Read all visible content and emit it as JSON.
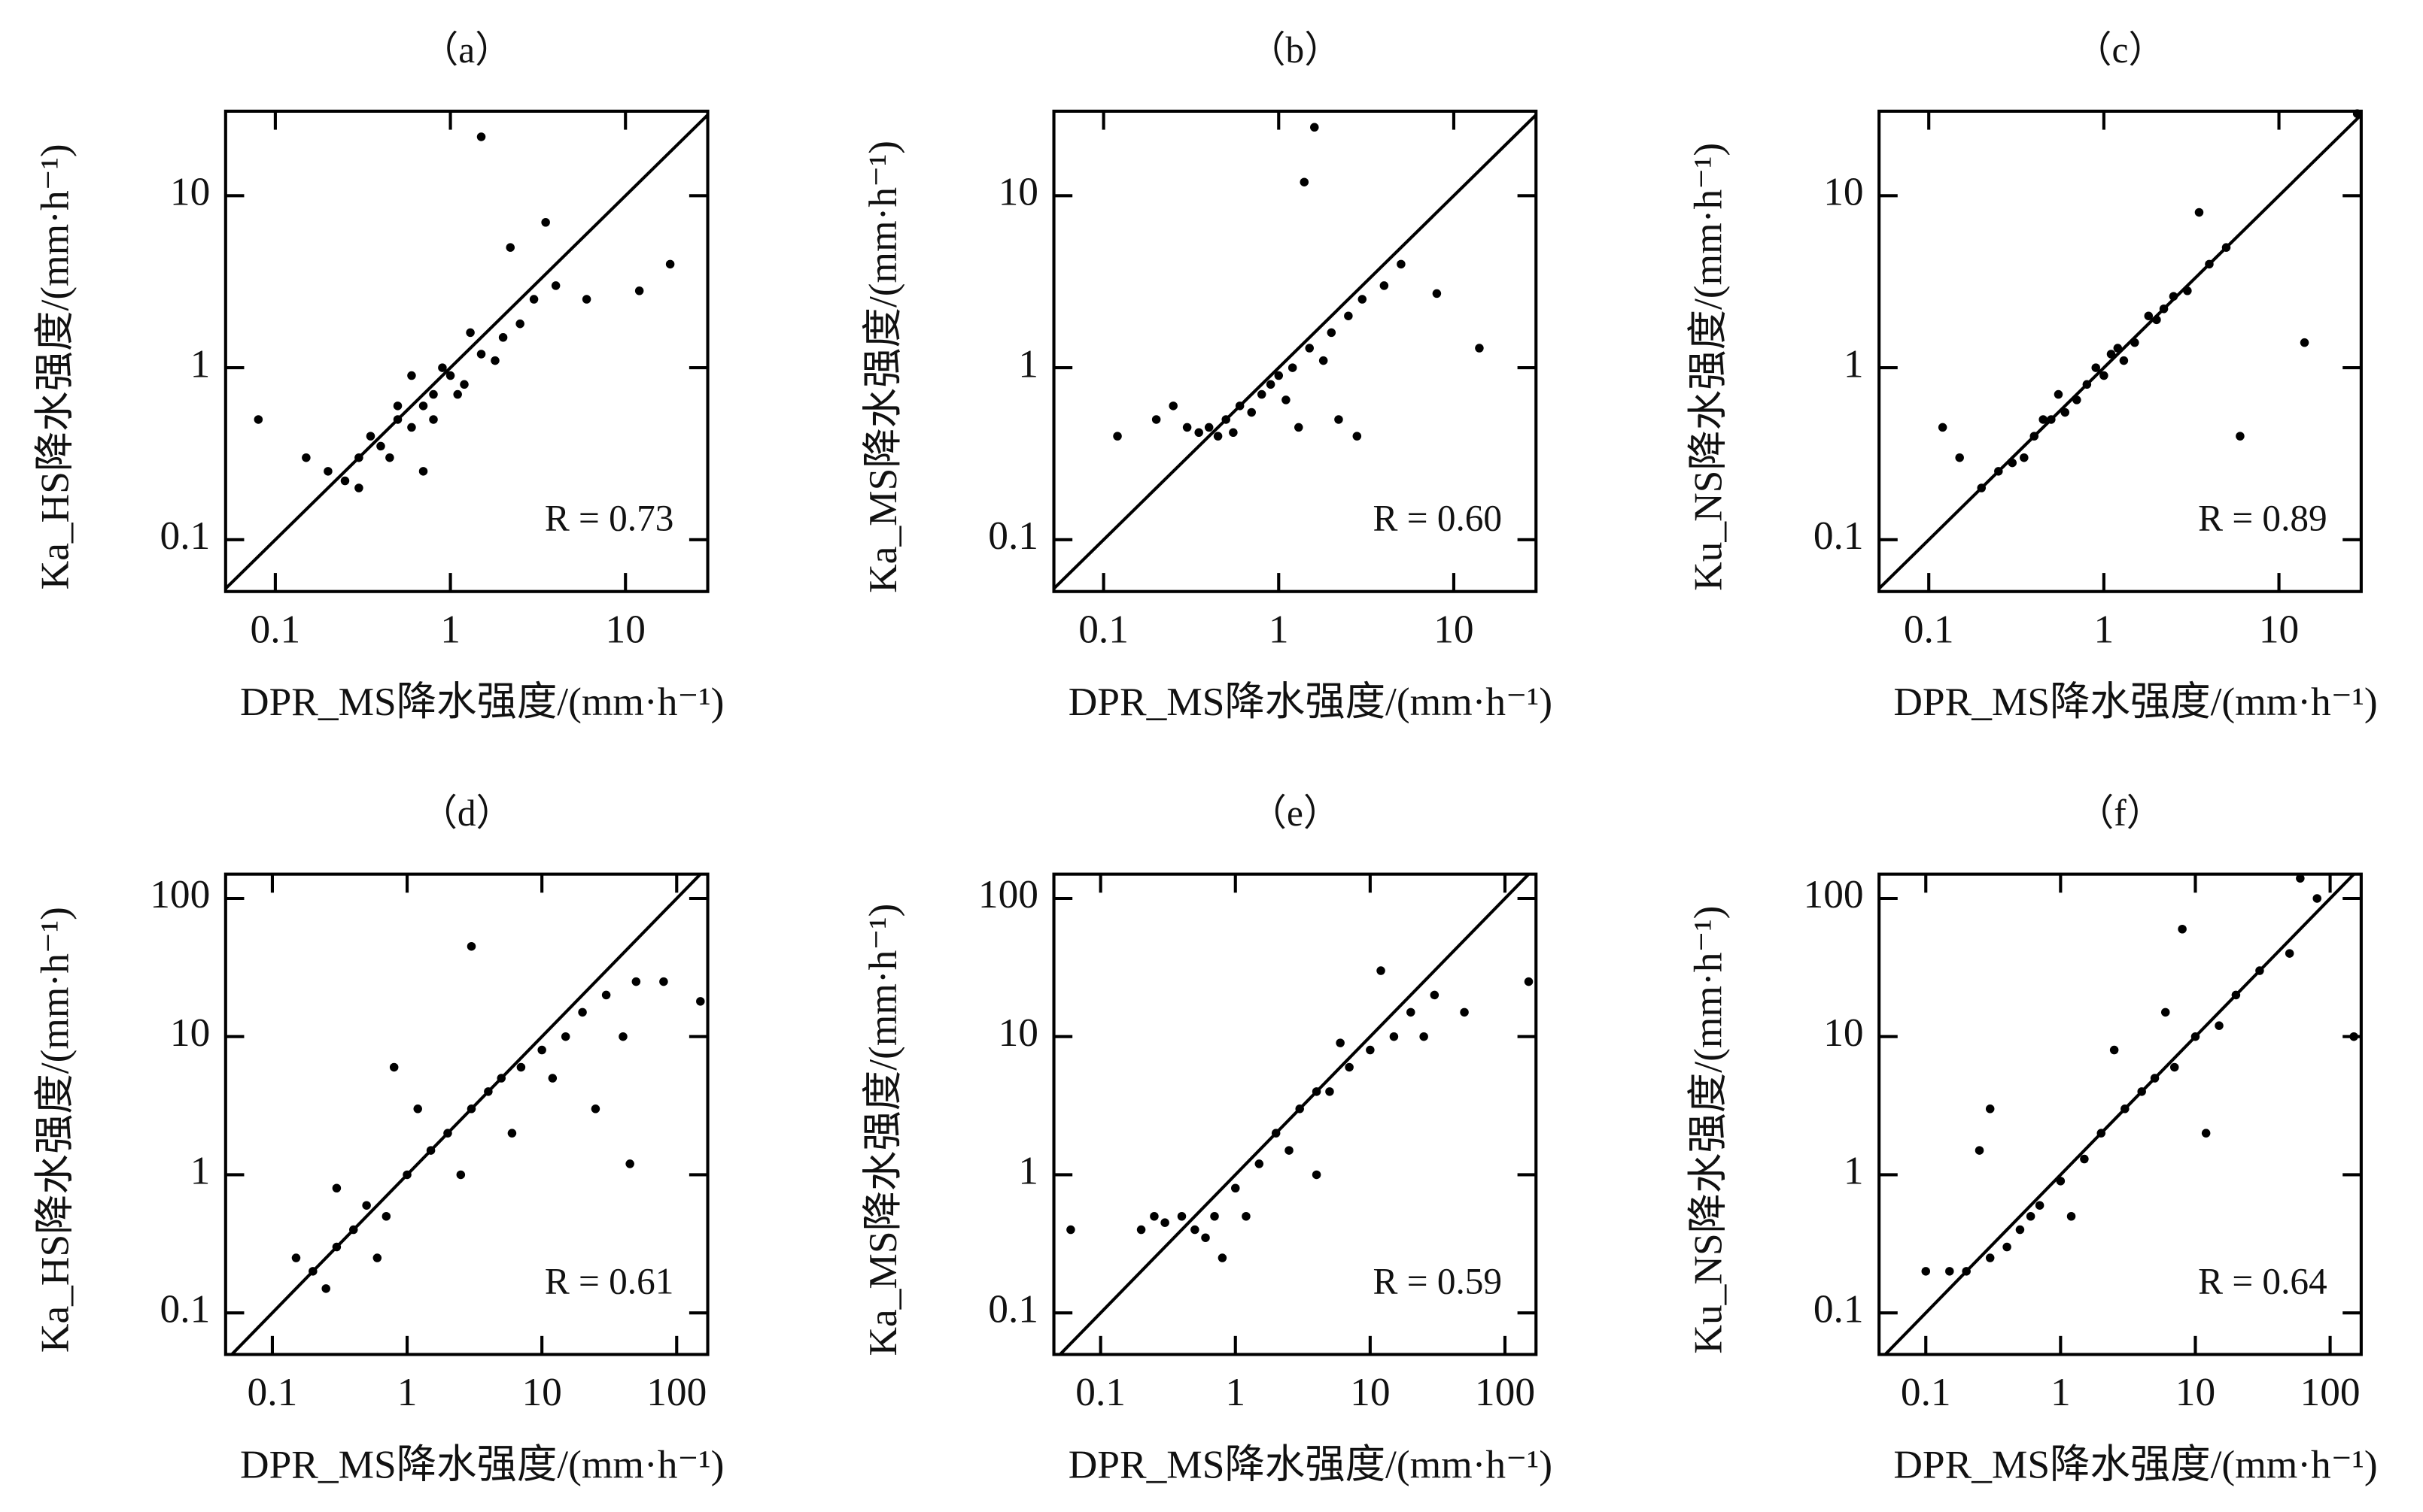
{
  "chart_data": [
    {
      "type": "scatter",
      "title": "（a）",
      "xlabel": "DPR_MS降水强度/(mm·h⁻¹)",
      "ylabel": "Ka_HS降水强度/(mm·h⁻¹)",
      "annotation": "R = 0.73",
      "log_scale": true,
      "color": "#000000",
      "xlim": [
        0.052,
        29.5
      ],
      "ylim": [
        0.05,
        31
      ],
      "xticks": [
        0.1,
        1,
        10
      ],
      "yticks": [
        0.1,
        1,
        10
      ],
      "x": [
        0.3,
        0.4,
        0.5,
        0.6,
        0.7,
        0.8,
        1.0,
        1.2,
        1.5,
        2,
        2.5,
        3,
        0.25,
        0.35,
        0.45,
        0.9,
        1.1,
        0.6,
        0.5,
        0.8,
        1.3,
        1.8,
        0.2,
        0.3,
        4,
        6,
        0.08,
        0.15,
        18,
        12,
        1.5,
        0.7,
        2.2,
        3.5
      ],
      "y": [
        0.3,
        0.35,
        0.5,
        0.45,
        0.6,
        0.7,
        0.9,
        0.8,
        1.2,
        1.5,
        1.8,
        2.5,
        0.22,
        0.4,
        0.3,
        1.0,
        0.7,
        0.9,
        0.6,
        0.5,
        1.6,
        1.1,
        0.25,
        0.2,
        3,
        2.5,
        0.5,
        0.3,
        4,
        2.8,
        22,
        0.25,
        5,
        7
      ]
    },
    {
      "type": "scatter",
      "title": "（b）",
      "xlabel": "DPR_MS降水强度/(mm·h⁻¹)",
      "ylabel": "Ka_MS降水强度/(mm·h⁻¹)",
      "annotation": "R = 0.60",
      "log_scale": true,
      "color": "#000000",
      "xlim": [
        0.052,
        29.5
      ],
      "ylim": [
        0.05,
        31
      ],
      "xticks": [
        0.1,
        1,
        10
      ],
      "yticks": [
        0.1,
        1,
        10
      ],
      "x": [
        0.3,
        0.4,
        0.5,
        0.6,
        0.8,
        1.0,
        1.2,
        1.5,
        2,
        2.5,
        3,
        0.2,
        0.25,
        0.35,
        0.7,
        0.9,
        1.1,
        1.8,
        2.2,
        4,
        5,
        0.12,
        1.6,
        1.3,
        2.8,
        14,
        8,
        0.45,
        0.55,
        1.4
      ],
      "y": [
        0.45,
        0.45,
        0.5,
        0.6,
        0.7,
        0.9,
        1.0,
        1.3,
        1.6,
        2,
        2.5,
        0.5,
        0.6,
        0.42,
        0.55,
        0.8,
        0.65,
        1.1,
        0.5,
        3,
        4,
        0.4,
        25,
        0.45,
        0.4,
        1.3,
        2.7,
        0.4,
        0.42,
        12
      ]
    },
    {
      "type": "scatter",
      "title": "（c）",
      "xlabel": "DPR_MS降水强度/(mm·h⁻¹)",
      "ylabel": "Ku_NS降水强度/(mm·h⁻¹)",
      "annotation": "R = 0.89",
      "log_scale": true,
      "color": "#000000",
      "xlim": [
        0.052,
        29.5
      ],
      "ylim": [
        0.05,
        31
      ],
      "xticks": [
        0.1,
        1,
        10
      ],
      "yticks": [
        0.1,
        1,
        10
      ],
      "x": [
        0.2,
        0.25,
        0.3,
        0.4,
        0.5,
        0.6,
        0.8,
        1.0,
        1.2,
        1.5,
        2,
        2.5,
        3,
        4,
        5,
        0.35,
        0.45,
        0.7,
        0.9,
        1.3,
        1.8,
        2.2,
        0.15,
        0.12,
        3.5,
        14,
        6,
        28,
        0.55,
        1.1
      ],
      "y": [
        0.2,
        0.25,
        0.28,
        0.4,
        0.5,
        0.55,
        0.8,
        0.9,
        1.3,
        1.4,
        1.9,
        2.6,
        2.8,
        4,
        5,
        0.3,
        0.5,
        0.65,
        1.0,
        1.1,
        2,
        2.2,
        0.3,
        0.45,
        8,
        1.4,
        0.4,
        30,
        0.7,
        1.2
      ]
    },
    {
      "type": "scatter",
      "title": "（d）",
      "xlabel": "DPR_MS降水强度/(mm·h⁻¹)",
      "ylabel": "Ka_HS降水强度/(mm·h⁻¹)",
      "annotation": "R = 0.61",
      "log_scale": true,
      "color": "#000000",
      "xlim": [
        0.045,
        170
      ],
      "ylim": [
        0.05,
        150
      ],
      "xticks": [
        0.1,
        1,
        10,
        100
      ],
      "yticks": [
        0.1,
        1,
        10,
        100
      ],
      "x": [
        0.2,
        0.25,
        0.3,
        0.4,
        0.5,
        0.7,
        1,
        1.5,
        2,
        3,
        4,
        5,
        7,
        10,
        15,
        20,
        30,
        50,
        80,
        0.3,
        0.6,
        1.2,
        2.5,
        6,
        12,
        25,
        40,
        150,
        0.15,
        3,
        45,
        0.8
      ],
      "y": [
        0.2,
        0.15,
        0.3,
        0.4,
        0.6,
        0.5,
        1,
        1.5,
        2,
        3,
        4,
        5,
        6,
        8,
        10,
        15,
        20,
        25,
        25,
        0.8,
        0.25,
        3,
        1,
        2,
        5,
        3,
        10,
        18,
        0.25,
        45,
        1.2,
        6
      ]
    },
    {
      "type": "scatter",
      "title": "（e）",
      "xlabel": "DPR_MS降水强度/(mm·h⁻¹)",
      "ylabel": "Ka_MS降水强度/(mm·h⁻¹)",
      "annotation": "R = 0.59",
      "log_scale": true,
      "color": "#000000",
      "xlim": [
        0.045,
        170
      ],
      "ylim": [
        0.05,
        150
      ],
      "xticks": [
        0.1,
        1,
        10,
        100
      ],
      "yticks": [
        0.1,
        1,
        10,
        100
      ],
      "x": [
        0.2,
        0.3,
        0.4,
        0.5,
        0.7,
        1,
        1.5,
        2,
        3,
        4,
        5,
        7,
        10,
        15,
        20,
        30,
        50,
        0.25,
        0.6,
        1.2,
        2.5,
        6,
        12,
        25,
        0.06,
        150,
        0.8,
        4
      ],
      "y": [
        0.4,
        0.45,
        0.5,
        0.4,
        0.5,
        0.8,
        1.2,
        2,
        3,
        4,
        4,
        6,
        8,
        10,
        15,
        20,
        15,
        0.5,
        0.35,
        0.5,
        1.5,
        9,
        30,
        10,
        0.4,
        25,
        0.25,
        1
      ]
    },
    {
      "type": "scatter",
      "title": "（f）",
      "xlabel": "DPR_MS降水强度/(mm·h⁻¹)",
      "ylabel": "Ku_NS降水强度/(mm·h⁻¹)",
      "annotation": "R = 0.64",
      "log_scale": true,
      "color": "#000000",
      "xlim": [
        0.045,
        170
      ],
      "ylim": [
        0.05,
        150
      ],
      "xticks": [
        0.1,
        1,
        10,
        100
      ],
      "yticks": [
        0.1,
        1,
        10,
        100
      ],
      "x": [
        0.15,
        0.2,
        0.3,
        0.4,
        0.5,
        0.7,
        1,
        1.5,
        2,
        3,
        4,
        5,
        7,
        10,
        15,
        20,
        30,
        50,
        80,
        0.25,
        0.6,
        1.2,
        2.5,
        6,
        12,
        0.1,
        0.3,
        150,
        60,
        8
      ],
      "y": [
        0.2,
        0.2,
        0.25,
        0.3,
        0.4,
        0.6,
        0.9,
        1.3,
        2,
        3,
        4,
        5,
        6,
        10,
        12,
        20,
        30,
        40,
        100,
        1.5,
        0.5,
        0.5,
        8,
        15,
        2,
        0.2,
        3,
        10,
        140,
        60
      ]
    }
  ]
}
